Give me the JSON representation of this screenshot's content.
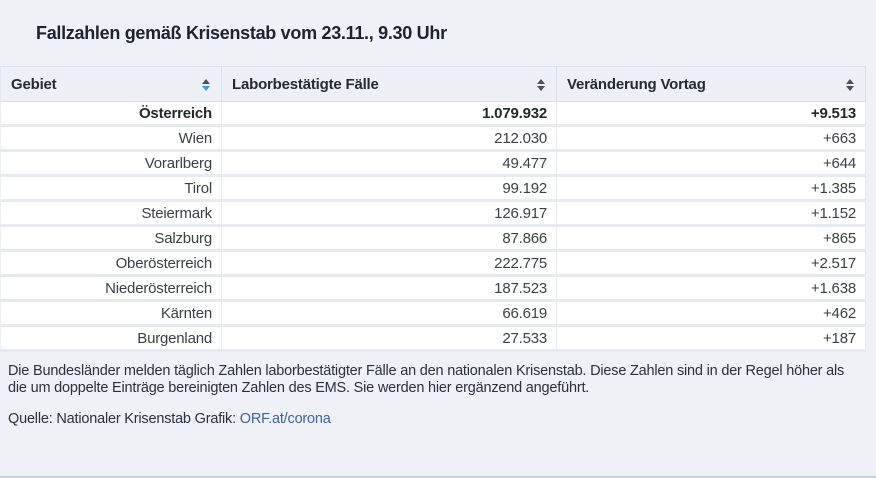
{
  "title": "Fallzahlen gemäß Krisenstab vom 23.11., 9.30 Uhr",
  "colors": {
    "page_background": "#eef1f6",
    "row_background": "#ffffff",
    "sort_arrow_dark": "#4c5157",
    "sort_arrow_active_blue": "#3f9ad3",
    "link_blue": "#45619e",
    "bottom_border": "#c9cfda"
  },
  "table": {
    "columns": [
      {
        "id": "gebiet",
        "label": "Gebiet",
        "sort_icon": "sort-icon",
        "sort_active": true
      },
      {
        "id": "faelle",
        "label": "Laborbestätigte Fälle",
        "sort_icon": "sort-icon",
        "sort_active": false
      },
      {
        "id": "veraenderung",
        "label": "Veränderung Vortag",
        "sort_icon": "sort-icon",
        "sort_active": false
      }
    ],
    "rows": [
      {
        "region": "Österreich",
        "cases": "1.079.932",
        "change": "+9.513",
        "bold": true
      },
      {
        "region": "Wien",
        "cases": "212.030",
        "change": "+663",
        "bold": false
      },
      {
        "region": "Vorarlberg",
        "cases": "49.477",
        "change": "+644",
        "bold": false
      },
      {
        "region": "Tirol",
        "cases": "99.192",
        "change": "+1.385",
        "bold": false
      },
      {
        "region": "Steiermark",
        "cases": "126.917",
        "change": "+1.152",
        "bold": false
      },
      {
        "region": "Salzburg",
        "cases": "87.866",
        "change": "+865",
        "bold": false
      },
      {
        "region": "Oberösterreich",
        "cases": "222.775",
        "change": "+2.517",
        "bold": false
      },
      {
        "region": "Niederösterreich",
        "cases": "187.523",
        "change": "+1.638",
        "bold": false
      },
      {
        "region": "Kärnten",
        "cases": "66.619",
        "change": "+462",
        "bold": false
      },
      {
        "region": "Burgenland",
        "cases": "27.533",
        "change": "+187",
        "bold": false
      }
    ]
  },
  "footer": {
    "note": "Die Bundesländer melden täglich Zahlen laborbestätigter Fälle an den nationalen Krisenstab. Diese Zahlen sind in der Regel höher als die um doppelte Einträge bereinigten Zahlen des EMS. Sie werden hier ergänzend angeführt.",
    "source_label": "Quelle: Nationaler Krisenstab Grafik: ",
    "source_link": "ORF.at/corona"
  },
  "chart_data": {
    "type": "table",
    "title": "Fallzahlen gemäß Krisenstab vom 23.11., 9.30 Uhr",
    "columns": [
      "Gebiet",
      "Laborbestätigte Fälle",
      "Veränderung Vortag"
    ],
    "categories": [
      "Österreich",
      "Wien",
      "Vorarlberg",
      "Tirol",
      "Steiermark",
      "Salzburg",
      "Oberösterreich",
      "Niederösterreich",
      "Kärnten",
      "Burgenland"
    ],
    "series": [
      {
        "name": "Laborbestätigte Fälle",
        "values": [
          1079932,
          212030,
          49477,
          99192,
          126917,
          87866,
          222775,
          187523,
          66619,
          27533
        ]
      },
      {
        "name": "Veränderung Vortag",
        "values": [
          9513,
          663,
          644,
          1385,
          1152,
          865,
          2517,
          1638,
          462,
          187
        ]
      }
    ]
  }
}
